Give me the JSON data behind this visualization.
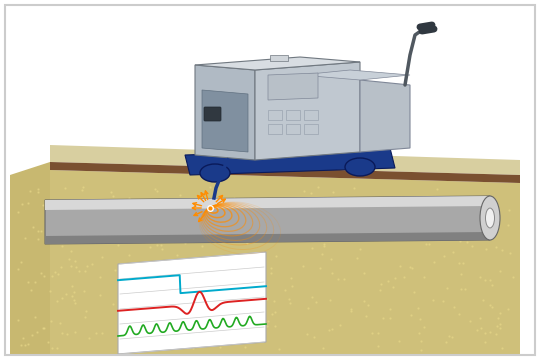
{
  "bg_color": "#ffffff",
  "border_color": "#cccccc",
  "ground_top_color": "#d4c88a",
  "ground_body_color": "#cfc07a",
  "ground_front_color": "#c8b870",
  "soil_dark_color": "#7a5030",
  "pipe_body_color": "#a8a8a8",
  "pipe_highlight_color": "#d8d8d8",
  "pipe_shadow_color": "#808080",
  "pipe_end_color": "#d0d0d0",
  "pipe_inner_color": "#f0f0f0",
  "machine_top_color": "#d8dde2",
  "machine_front_color": "#b0bac4",
  "machine_side_color": "#c0c8d0",
  "machine_panel_color": "#8090a0",
  "machine_dark_color": "#707880",
  "machine_screen_color": "#404850",
  "wheel_color": "#1a3a8a",
  "wheel_dark_color": "#0a1a5a",
  "ctrl_box_color": "#b8c0c8",
  "handle_color": "#505860",
  "handle_tip_color": "#303840",
  "cable_color": "#1a3a8a",
  "radar_color": "#ff8c00",
  "chart_bg": "#ffffff",
  "chart_grid": "#cccccc",
  "chart_line_blue": "#00aacc",
  "chart_line_red": "#dd2222",
  "chart_line_green": "#22aa22",
  "soil_dot_color": "#b8a060"
}
